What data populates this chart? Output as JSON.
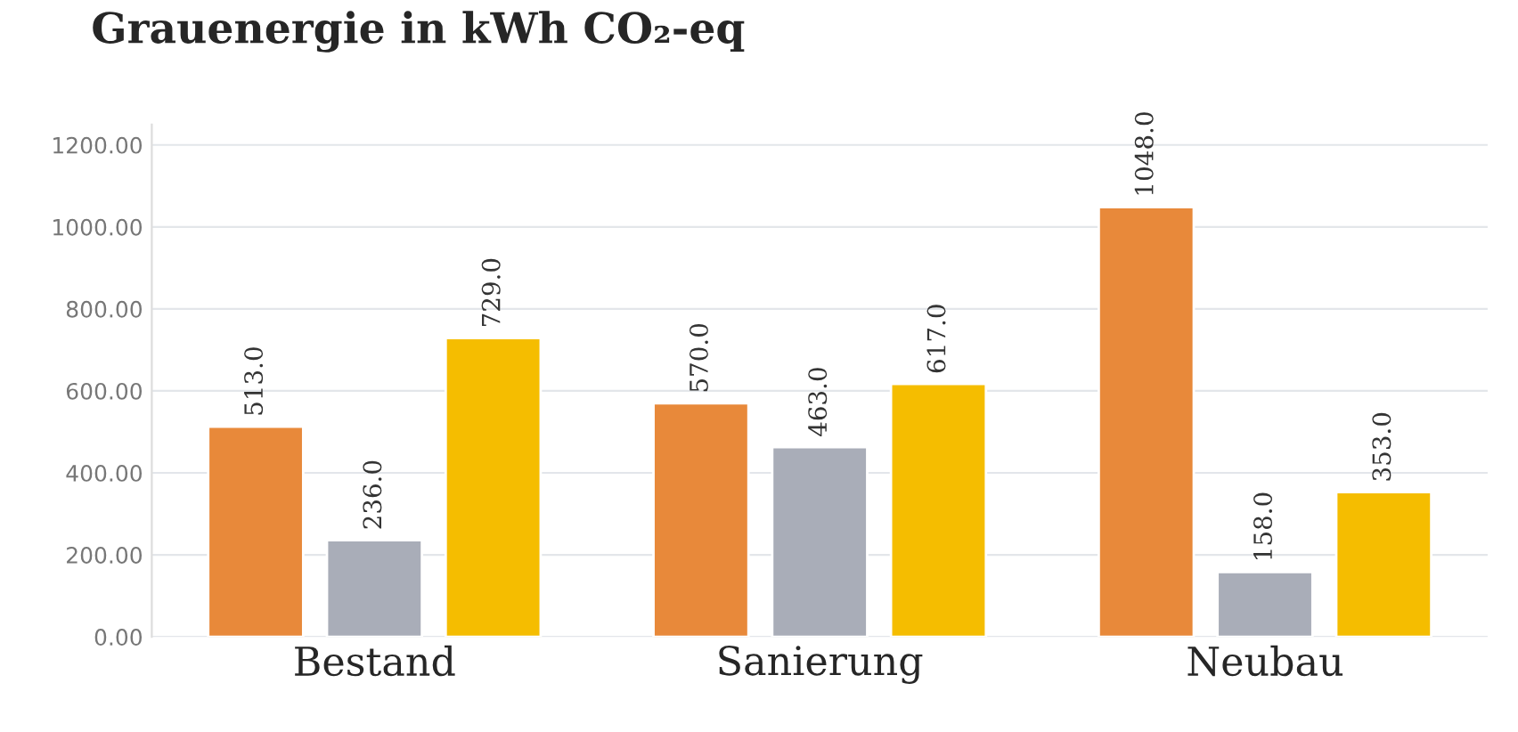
{
  "chart_data": {
    "type": "bar",
    "title": "Grauenergie in kWh CO₂-eq",
    "categories": [
      "Bestand",
      "Sanierung",
      "Neubau"
    ],
    "series": [
      {
        "color": "#e8893a",
        "values": [
          513,
          570,
          1048
        ],
        "value_labels": [
          "513.0",
          "570.0",
          "1048.0"
        ]
      },
      {
        "color": "#a9adb8",
        "values": [
          236,
          463,
          158
        ],
        "value_labels": [
          "236.0",
          "463.0",
          "158.0"
        ]
      },
      {
        "color": "#f5bd00",
        "values": [
          729,
          617,
          353
        ],
        "value_labels": [
          "729.0",
          "617.0",
          "353.0"
        ]
      }
    ],
    "ylim": [
      0,
      1250
    ],
    "yticks": [
      {
        "value": 0,
        "label": "0.00"
      },
      {
        "value": 200,
        "label": "200.00"
      },
      {
        "value": 400,
        "label": "400.00"
      },
      {
        "value": 600,
        "label": "600.00"
      },
      {
        "value": 800,
        "label": "800.00"
      },
      {
        "value": 1000,
        "label": "1000.00"
      },
      {
        "value": 1200,
        "label": "1200.00"
      }
    ],
    "grid": "y"
  }
}
